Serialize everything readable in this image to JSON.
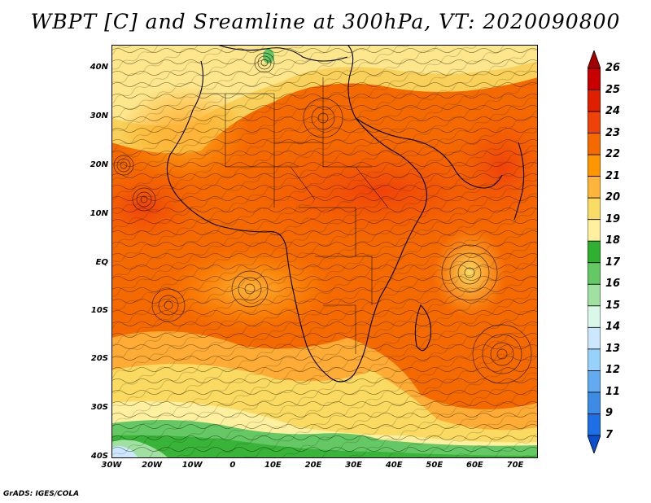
{
  "title": "WBPT [C] and Sreamline at 300hPa, VT: 2020090800",
  "credit": "GrADS: IGES/COLA",
  "lat_ticks": [
    "40N",
    "30N",
    "20N",
    "10N",
    "EQ",
    "10S",
    "20S",
    "30S",
    "40S"
  ],
  "lon_ticks": [
    "30W",
    "20W",
    "10W",
    "0",
    "10E",
    "20E",
    "30E",
    "40E",
    "50E",
    "60E",
    "70E"
  ],
  "colorbar": {
    "labels": [
      "26",
      "25",
      "24",
      "23",
      "22",
      "21",
      "20",
      "19",
      "18",
      "17",
      "16",
      "15",
      "14",
      "13",
      "12",
      "11",
      "9",
      "7"
    ],
    "colors": [
      "#a50000",
      "#c80000",
      "#e01e00",
      "#f0410a",
      "#f56a00",
      "#ff9600",
      "#ffb43c",
      "#fadc64",
      "#fff0a0",
      "#30b030",
      "#64c864",
      "#a0e0a0",
      "#d8f8e8",
      "#cce8ff",
      "#96d2fa",
      "#64aaf0",
      "#3c8ce6",
      "#1e6ee6",
      "#0a4fd0"
    ]
  }
}
